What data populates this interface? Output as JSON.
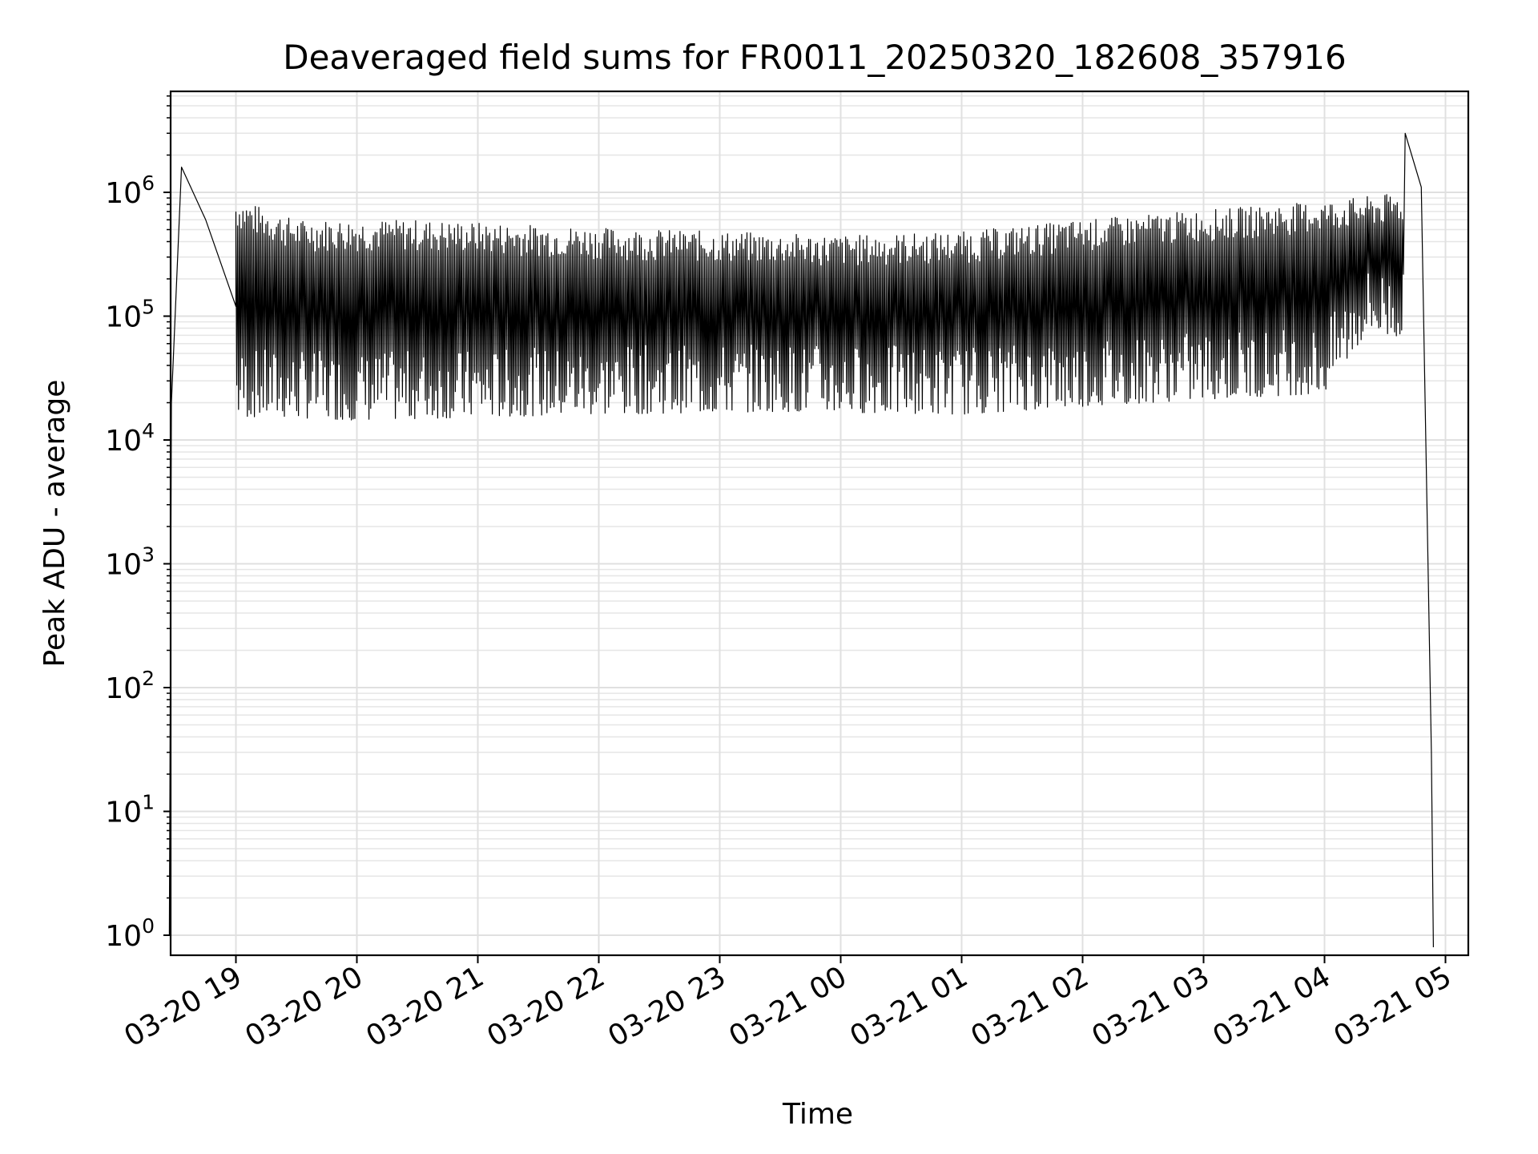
{
  "chart_data": {
    "type": "line",
    "title": "Deaveraged field sums for FR0011_20250320_182608_357916",
    "xlabel": "Time",
    "ylabel": "Peak ADU - average",
    "yscale": "log",
    "ylim": [
      0.75,
      6000000
    ],
    "xlim": [
      "2025-03-20 18:28",
      "2025-03-21 05:00"
    ],
    "grid": true,
    "line_color": "#000000",
    "x_ticks": [
      "03-20 19",
      "03-20 20",
      "03-20 21",
      "03-20 22",
      "03-20 23",
      "03-21 00",
      "03-21 01",
      "03-21 02",
      "03-21 03",
      "03-21 04",
      "03-21 05"
    ],
    "y_ticks": [
      {
        "base": "10",
        "exp": "0",
        "value": 1
      },
      {
        "base": "10",
        "exp": "1",
        "value": 10
      },
      {
        "base": "10",
        "exp": "2",
        "value": 100
      },
      {
        "base": "10",
        "exp": "3",
        "value": 1000
      },
      {
        "base": "10",
        "exp": "4",
        "value": 10000
      },
      {
        "base": "10",
        "exp": "5",
        "value": 100000
      },
      {
        "base": "10",
        "exp": "6",
        "value": 1000000
      }
    ],
    "series": [
      {
        "description_points": [
          {
            "x": "2025-03-20 18:27",
            "y": 1
          },
          {
            "x": "2025-03-20 18:28",
            "y": 20000
          },
          {
            "x": "2025-03-20 18:33",
            "y": 1600000
          },
          {
            "x": "2025-03-20 18:45",
            "y": 600000
          },
          {
            "x": "2025-03-20 19:00",
            "y": 120000
          },
          {
            "x": "2025-03-20 19:20",
            "y": 18000
          },
          {
            "x": "2025-03-20 20:00",
            "y": 20000
          },
          {
            "x": "2025-03-21 00:00",
            "y": 20000
          },
          {
            "x": "2025-03-21 04:00",
            "y": 25000
          },
          {
            "x": "2025-03-21 04:40",
            "y": 3000000
          },
          {
            "x": "2025-03-21 04:48",
            "y": 1100000
          },
          {
            "x": "2025-03-21 04:53",
            "y": 30
          },
          {
            "x": "2025-03-21 04:54",
            "y": 0.8
          }
        ],
        "envelope": {
          "upper": [
            {
              "x": "2025-03-20 19:00",
              "y": 900000
            },
            {
              "x": "2025-03-20 19:30",
              "y": 600000
            },
            {
              "x": "2025-03-20 20:30",
              "y": 600000
            },
            {
              "x": "2025-03-20 22:00",
              "y": 520000
            },
            {
              "x": "2025-03-21 00:00",
              "y": 450000
            },
            {
              "x": "2025-03-21 01:00",
              "y": 480000
            },
            {
              "x": "2025-03-21 02:00",
              "y": 600000
            },
            {
              "x": "2025-03-21 03:00",
              "y": 720000
            },
            {
              "x": "2025-03-21 04:00",
              "y": 850000
            },
            {
              "x": "2025-03-21 04:40",
              "y": 1000000
            }
          ],
          "lower": [
            {
              "x": "2025-03-20 19:20",
              "y": 18000
            },
            {
              "x": "2025-03-20 20:00",
              "y": 17000
            },
            {
              "x": "2025-03-20 22:00",
              "y": 19000
            },
            {
              "x": "2025-03-20 23:30",
              "y": 20000
            },
            {
              "x": "2025-03-21 01:00",
              "y": 19000
            },
            {
              "x": "2025-03-21 02:00",
              "y": 22000
            },
            {
              "x": "2025-03-21 03:00",
              "y": 25000
            },
            {
              "x": "2025-03-21 04:00",
              "y": 28000
            },
            {
              "x": "2025-03-21 04:20",
              "y": 80000
            }
          ]
        }
      }
    ]
  }
}
